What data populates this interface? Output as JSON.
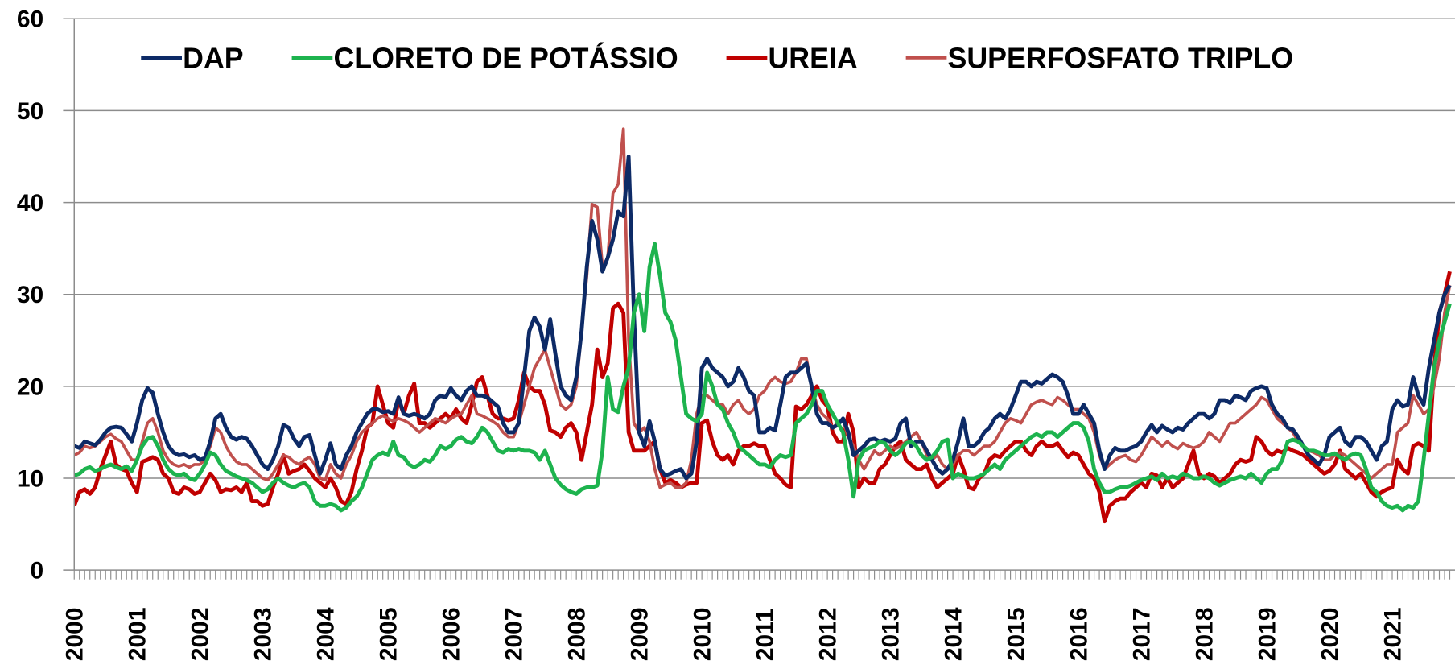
{
  "chart_data": {
    "type": "line",
    "categories": [
      "2000",
      null,
      null,
      null,
      null,
      null,
      null,
      null,
      null,
      null,
      null,
      null,
      "2001",
      null,
      null,
      null,
      null,
      null,
      null,
      null,
      null,
      null,
      null,
      null,
      "2002",
      null,
      null,
      null,
      null,
      null,
      null,
      null,
      null,
      null,
      null,
      null,
      "2003",
      null,
      null,
      null,
      null,
      null,
      null,
      null,
      null,
      null,
      null,
      null,
      "2004",
      null,
      null,
      null,
      null,
      null,
      null,
      null,
      null,
      null,
      null,
      null,
      "2005",
      null,
      null,
      null,
      null,
      null,
      null,
      null,
      null,
      null,
      null,
      null,
      "2006",
      null,
      null,
      null,
      null,
      null,
      null,
      null,
      null,
      null,
      null,
      null,
      "2007",
      null,
      null,
      null,
      null,
      null,
      null,
      null,
      null,
      null,
      null,
      null,
      "2008",
      null,
      null,
      null,
      null,
      null,
      null,
      null,
      null,
      null,
      null,
      null,
      "2009",
      null,
      null,
      null,
      null,
      null,
      null,
      null,
      null,
      null,
      null,
      null,
      "2010",
      null,
      null,
      null,
      null,
      null,
      null,
      null,
      null,
      null,
      null,
      null,
      "2011",
      null,
      null,
      null,
      null,
      null,
      null,
      null,
      null,
      null,
      null,
      null,
      "2012",
      null,
      null,
      null,
      null,
      null,
      null,
      null,
      null,
      null,
      null,
      null,
      "2013",
      null,
      null,
      null,
      null,
      null,
      null,
      null,
      null,
      null,
      null,
      null,
      "2014",
      null,
      null,
      null,
      null,
      null,
      null,
      null,
      null,
      null,
      null,
      null,
      "2015",
      null,
      null,
      null,
      null,
      null,
      null,
      null,
      null,
      null,
      null,
      null,
      "2016",
      null,
      null,
      null,
      null,
      null,
      null,
      null,
      null,
      null,
      null,
      null,
      "2017",
      null,
      null,
      null,
      null,
      null,
      null,
      null,
      null,
      null,
      null,
      null,
      "2018",
      null,
      null,
      null,
      null,
      null,
      null,
      null,
      null,
      null,
      null,
      null,
      "2019",
      null,
      null,
      null,
      null,
      null,
      null,
      null,
      null,
      null,
      null,
      null,
      "2020",
      null,
      null,
      null,
      null,
      null,
      null,
      null,
      null,
      null,
      null,
      null,
      "2021",
      null,
      null,
      null,
      null,
      null,
      null,
      null,
      null,
      null,
      null,
      null
    ],
    "series": [
      {
        "name": "DAP",
        "color": "#0d2a66",
        "values": [
          13.5,
          13.3,
          14,
          13.8,
          13.6,
          14.2,
          15,
          15.5,
          15.6,
          15.5,
          14.8,
          14,
          16,
          18.5,
          19.8,
          19.3,
          17,
          15,
          13.5,
          12.8,
          12.5,
          12.6,
          12.3,
          12.5,
          12,
          12.2,
          14,
          16.5,
          17,
          15.5,
          14.5,
          14.2,
          14.5,
          14.3,
          13.5,
          12.5,
          11.5,
          11,
          12,
          13.5,
          15.8,
          15.5,
          14.3,
          13.5,
          14.5,
          14.7,
          12.5,
          10.5,
          12,
          13.8,
          11.5,
          11,
          12.5,
          13.5,
          15,
          16,
          17,
          17.5,
          17.5,
          17.2,
          17.3,
          17,
          18.8,
          17,
          16.8,
          17,
          16.8,
          16.5,
          17,
          18.5,
          19,
          18.8,
          19.8,
          19,
          18.5,
          19.5,
          20,
          19,
          19,
          18.8,
          18.3,
          17.8,
          16,
          15,
          15,
          16,
          21,
          26,
          27.5,
          26.5,
          24,
          27.3,
          23.5,
          20,
          19,
          18.5,
          21,
          26,
          33,
          38,
          36,
          32.5,
          34,
          36,
          39,
          38.5,
          45,
          28,
          15,
          13.5,
          16.2,
          14,
          11,
          10.3,
          10.5,
          10.8,
          11,
          10,
          10.5,
          14,
          22,
          23,
          22,
          21.5,
          21,
          20,
          20.5,
          22,
          21,
          19.5,
          19,
          15,
          15,
          15.5,
          15.2,
          18,
          21,
          21.5,
          21.5,
          22,
          22.5,
          20,
          17,
          16,
          16,
          15.5,
          15.8,
          16.5,
          15,
          12.5,
          13,
          13.5,
          14.2,
          14.3,
          14,
          14.2,
          14,
          14.3,
          16,
          16.5,
          13.5,
          14,
          14,
          13,
          12,
          11,
          10.5,
          11,
          12,
          14,
          16.5,
          13.5,
          13.5,
          14,
          15,
          15.5,
          16.5,
          17,
          16.5,
          17.5,
          19,
          20.5,
          20.5,
          20,
          20.5,
          20.3,
          20.8,
          21.3,
          21,
          20.5,
          19,
          17,
          17,
          18,
          17,
          16,
          13,
          11,
          12.5,
          13.3,
          13,
          13,
          13.3,
          13.5,
          14,
          15,
          15.8,
          15,
          15.7,
          15.3,
          15,
          15.5,
          15.3,
          16,
          16.5,
          17,
          17,
          16.5,
          17,
          18.5,
          18.5,
          18.2,
          19,
          18.8,
          18.5,
          19.5,
          19.8,
          20,
          19.8,
          18,
          17,
          16.5,
          15.5,
          15.3,
          14.5,
          13.5,
          12.5,
          12,
          11.5,
          12.5,
          14.5,
          15,
          15.5,
          14,
          13.5,
          14.5,
          14.5,
          14,
          13,
          12,
          13.5,
          14,
          17.5,
          18.5,
          17.8,
          18,
          21,
          19,
          18,
          22,
          25,
          28,
          30,
          31
        ]
      },
      {
        "name": "CLORETO DE POTÁSSIO",
        "color": "#1db34e",
        "values": [
          10.3,
          10.5,
          11,
          11.2,
          10.8,
          11,
          11.3,
          11.5,
          11.2,
          11,
          11.3,
          10.8,
          12,
          13.5,
          14.3,
          14.5,
          13.5,
          12,
          11,
          10.5,
          10.3,
          10.5,
          10,
          9.8,
          10.5,
          11.5,
          12.8,
          12.5,
          11.5,
          10.8,
          10.5,
          10.2,
          10,
          9.8,
          9.5,
          9,
          8.5,
          8.8,
          9.5,
          10,
          9.5,
          9.2,
          9,
          9.3,
          9.5,
          9,
          7.5,
          7,
          7,
          7.2,
          7,
          6.5,
          6.8,
          7.5,
          8,
          9,
          10.5,
          12,
          12.5,
          12.8,
          12.5,
          14,
          12.5,
          12.3,
          11.5,
          11.2,
          11.5,
          12,
          11.8,
          12.5,
          13.5,
          13.2,
          13.5,
          14.2,
          14.5,
          14,
          13.8,
          14.5,
          15.5,
          15,
          14,
          13,
          12.8,
          13.2,
          13,
          13.2,
          13,
          13,
          12.8,
          12,
          13,
          11.5,
          10,
          9.3,
          8.8,
          8.5,
          8.3,
          8.8,
          9,
          9,
          9.2,
          13,
          21,
          17.5,
          17.2,
          20,
          22,
          28,
          30,
          26,
          33,
          35.5,
          32,
          28,
          27,
          25,
          21,
          17,
          16.5,
          16.2,
          17,
          21.5,
          20,
          18,
          17.5,
          16,
          15,
          13.5,
          13,
          12.5,
          12,
          11.5,
          11.5,
          11.2,
          12,
          12.5,
          12.3,
          12.5,
          16,
          16.5,
          17,
          18,
          19.5,
          19.5,
          18,
          17,
          16,
          15,
          12,
          8,
          12,
          13,
          13.3,
          13.5,
          14,
          13.8,
          13,
          12.5,
          13,
          13.8,
          14,
          13.5,
          12.5,
          12,
          12.3,
          13,
          14,
          14.2,
          10,
          10.5,
          10.2,
          10,
          10,
          10.2,
          10.5,
          11,
          11.5,
          11,
          12,
          12.5,
          13,
          13.5,
          14,
          14.5,
          14.8,
          14.5,
          15,
          15,
          14.5,
          15,
          15.5,
          16,
          16,
          15.5,
          14,
          11,
          9.5,
          8.5,
          8.5,
          8.8,
          9,
          9,
          9.2,
          9.5,
          9.8,
          10,
          10.2,
          9.8,
          10.5,
          10,
          10.2,
          10,
          10.5,
          10.3,
          10,
          10,
          10.2,
          10,
          9.5,
          9.2,
          9.5,
          9.8,
          10,
          10.2,
          10,
          10.5,
          10,
          9.5,
          10.5,
          11,
          11,
          12,
          14,
          14.2,
          14,
          13.5,
          13,
          13,
          12.8,
          12.5,
          12.5,
          12.7,
          12.3,
          12,
          12.5,
          12.7,
          12.5,
          11,
          9,
          8.5,
          7.5,
          7,
          6.8,
          7,
          6.5,
          7,
          6.8,
          7.5,
          12,
          17,
          22,
          25,
          27,
          29
        ]
      },
      {
        "name": "UREIA",
        "color": "#c00000",
        "values": [
          7,
          8.5,
          8.8,
          8.3,
          9,
          11,
          12.5,
          14,
          11.5,
          11,
          10.8,
          9.5,
          8.5,
          11.8,
          12,
          12.3,
          12,
          10.5,
          10,
          8.5,
          8.3,
          9,
          8.8,
          8.3,
          8.5,
          9.5,
          10.5,
          9.8,
          8.5,
          8.8,
          8.7,
          9,
          8.5,
          9.5,
          7.5,
          7.5,
          7,
          7.2,
          9,
          10.5,
          12.5,
          10.5,
          10.8,
          11,
          11.5,
          10.8,
          10,
          9.5,
          9,
          10,
          9,
          7.5,
          7.2,
          8.5,
          11,
          13,
          15.5,
          16,
          20,
          18,
          16,
          15.5,
          18.5,
          17,
          19,
          20.3,
          16,
          16,
          15.5,
          16,
          16.5,
          17,
          16.5,
          17.5,
          16.5,
          16,
          18,
          20.5,
          21,
          19,
          17,
          16.5,
          16.5,
          16.3,
          16.5,
          18.5,
          21.5,
          20,
          19.5,
          19.5,
          18,
          15.2,
          15,
          14.5,
          15.5,
          16,
          15,
          12,
          15,
          18,
          24,
          21,
          22.5,
          28.5,
          29,
          28,
          15,
          13,
          13,
          13,
          13.5,
          14,
          11,
          9.5,
          9.8,
          9.5,
          9,
          9.3,
          9.5,
          9.5,
          16,
          16.3,
          14,
          12.5,
          12,
          12.5,
          11.5,
          13,
          13.5,
          13.5,
          13.8,
          13.5,
          13.5,
          12,
          10.5,
          10,
          9.3,
          9,
          17.8,
          17.5,
          18,
          19,
          20,
          18.5,
          17.8,
          15,
          14,
          14,
          17,
          15,
          9,
          10,
          9.5,
          9.5,
          11,
          11.5,
          12.5,
          13.5,
          14,
          12,
          11.5,
          11,
          11,
          11.5,
          10,
          9,
          9.5,
          10,
          10.5,
          12.5,
          11,
          9,
          8.8,
          10,
          10.5,
          12,
          12.5,
          12.3,
          13,
          13.5,
          14,
          14,
          13,
          12.5,
          13.5,
          14,
          13.5,
          13.5,
          13.8,
          13,
          12.3,
          12.8,
          12.5,
          11.5,
          10.5,
          10,
          8.5,
          5.3,
          7,
          7.5,
          7.8,
          7.8,
          8.5,
          9,
          9.5,
          9,
          10.5,
          10.3,
          9,
          10,
          9,
          9.5,
          10,
          11.5,
          13,
          10.5,
          10,
          10.5,
          10.2,
          9.5,
          10,
          10.5,
          11.5,
          12,
          11.8,
          12,
          14.5,
          14,
          13,
          12.5,
          13,
          12.8,
          13.3,
          13,
          12.8,
          12.5,
          12,
          11.5,
          11,
          10.5,
          10.8,
          11.5,
          13,
          11,
          10.5,
          10,
          10.5,
          9.5,
          8.5,
          8,
          8.5,
          8.8,
          9,
          12,
          11,
          10.5,
          13.5,
          13.8,
          13.5,
          13,
          22,
          28,
          30,
          32.5
        ]
      },
      {
        "name": "SUPERFOSFATO TRIPLO",
        "color": "#c0504d",
        "values": [
          12.5,
          12.8,
          13.5,
          13.3,
          13.5,
          14,
          14.5,
          14.8,
          14.3,
          14,
          13,
          12,
          12,
          14,
          16,
          16.5,
          15,
          13,
          12,
          11.5,
          11.3,
          11.5,
          11.2,
          11.5,
          11.5,
          12,
          13.5,
          15.5,
          15,
          13.5,
          12.5,
          11.8,
          11.5,
          11.5,
          11,
          10.5,
          10,
          9.8,
          10.5,
          11.5,
          12.5,
          12.3,
          11.8,
          11.5,
          12,
          12.3,
          11.5,
          10,
          9.8,
          11.5,
          10.5,
          10,
          11.5,
          12.5,
          14,
          15,
          15.5,
          16,
          16.5,
          16.8,
          16.5,
          16.2,
          16.5,
          16.3,
          16,
          15.5,
          15,
          15.5,
          16,
          16.5,
          16.3,
          16,
          16.5,
          16.8,
          17,
          18,
          19,
          17,
          16.8,
          16.5,
          16.2,
          15.8,
          15,
          14.5,
          14.5,
          16,
          18,
          20,
          22,
          23,
          24,
          22,
          20,
          18,
          17.5,
          18,
          20,
          26,
          32,
          39.8,
          39.5,
          33,
          34,
          41,
          42,
          48,
          25,
          16,
          15,
          15.5,
          14,
          11,
          9,
          9.3,
          9.5,
          9,
          9,
          9.5,
          12,
          17,
          19,
          19,
          18.5,
          18,
          18,
          17,
          18,
          18.5,
          17.5,
          17,
          17.5,
          19,
          19.5,
          20.5,
          21,
          20.5,
          20.3,
          20.5,
          21.5,
          23,
          23,
          20,
          18,
          17,
          16.5,
          15.5,
          16,
          16.3,
          14.5,
          13.5,
          12,
          11,
          12,
          13,
          12.5,
          13,
          13.5,
          13.2,
          13.5,
          14,
          14.5,
          15,
          14,
          12.5,
          12,
          12.5,
          11.5,
          11,
          11.5,
          12.5,
          13,
          13,
          12.5,
          13,
          13.5,
          13.5,
          14,
          15,
          16,
          16.5,
          16.3,
          16,
          17,
          18,
          18.3,
          18.5,
          18.2,
          18,
          18.8,
          18.5,
          18,
          17.5,
          17.5,
          17,
          16.5,
          15,
          12.5,
          11,
          11.5,
          12,
          12.3,
          12.5,
          12,
          11.8,
          12.5,
          13.5,
          14.5,
          14,
          13.5,
          14,
          13.5,
          13.2,
          13.8,
          13.5,
          13.3,
          13.5,
          14,
          15,
          14.5,
          14,
          15,
          16,
          16,
          16.5,
          17,
          17.5,
          18,
          18.8,
          18.5,
          17.5,
          16.5,
          16,
          15.5,
          15,
          14,
          13.5,
          13,
          12.8,
          12.5,
          12,
          12,
          12.5,
          12.8,
          12.5,
          12,
          11.5,
          11,
          10.5,
          10,
          10.5,
          11,
          11.5,
          11.5,
          15,
          15.5,
          16,
          19,
          18,
          17,
          17.5,
          20,
          23,
          28,
          31
        ]
      }
    ],
    "ylim": [
      0,
      60
    ],
    "yticks": [
      0,
      10,
      20,
      30,
      40,
      50,
      60
    ],
    "grid": true,
    "legend": "top"
  }
}
